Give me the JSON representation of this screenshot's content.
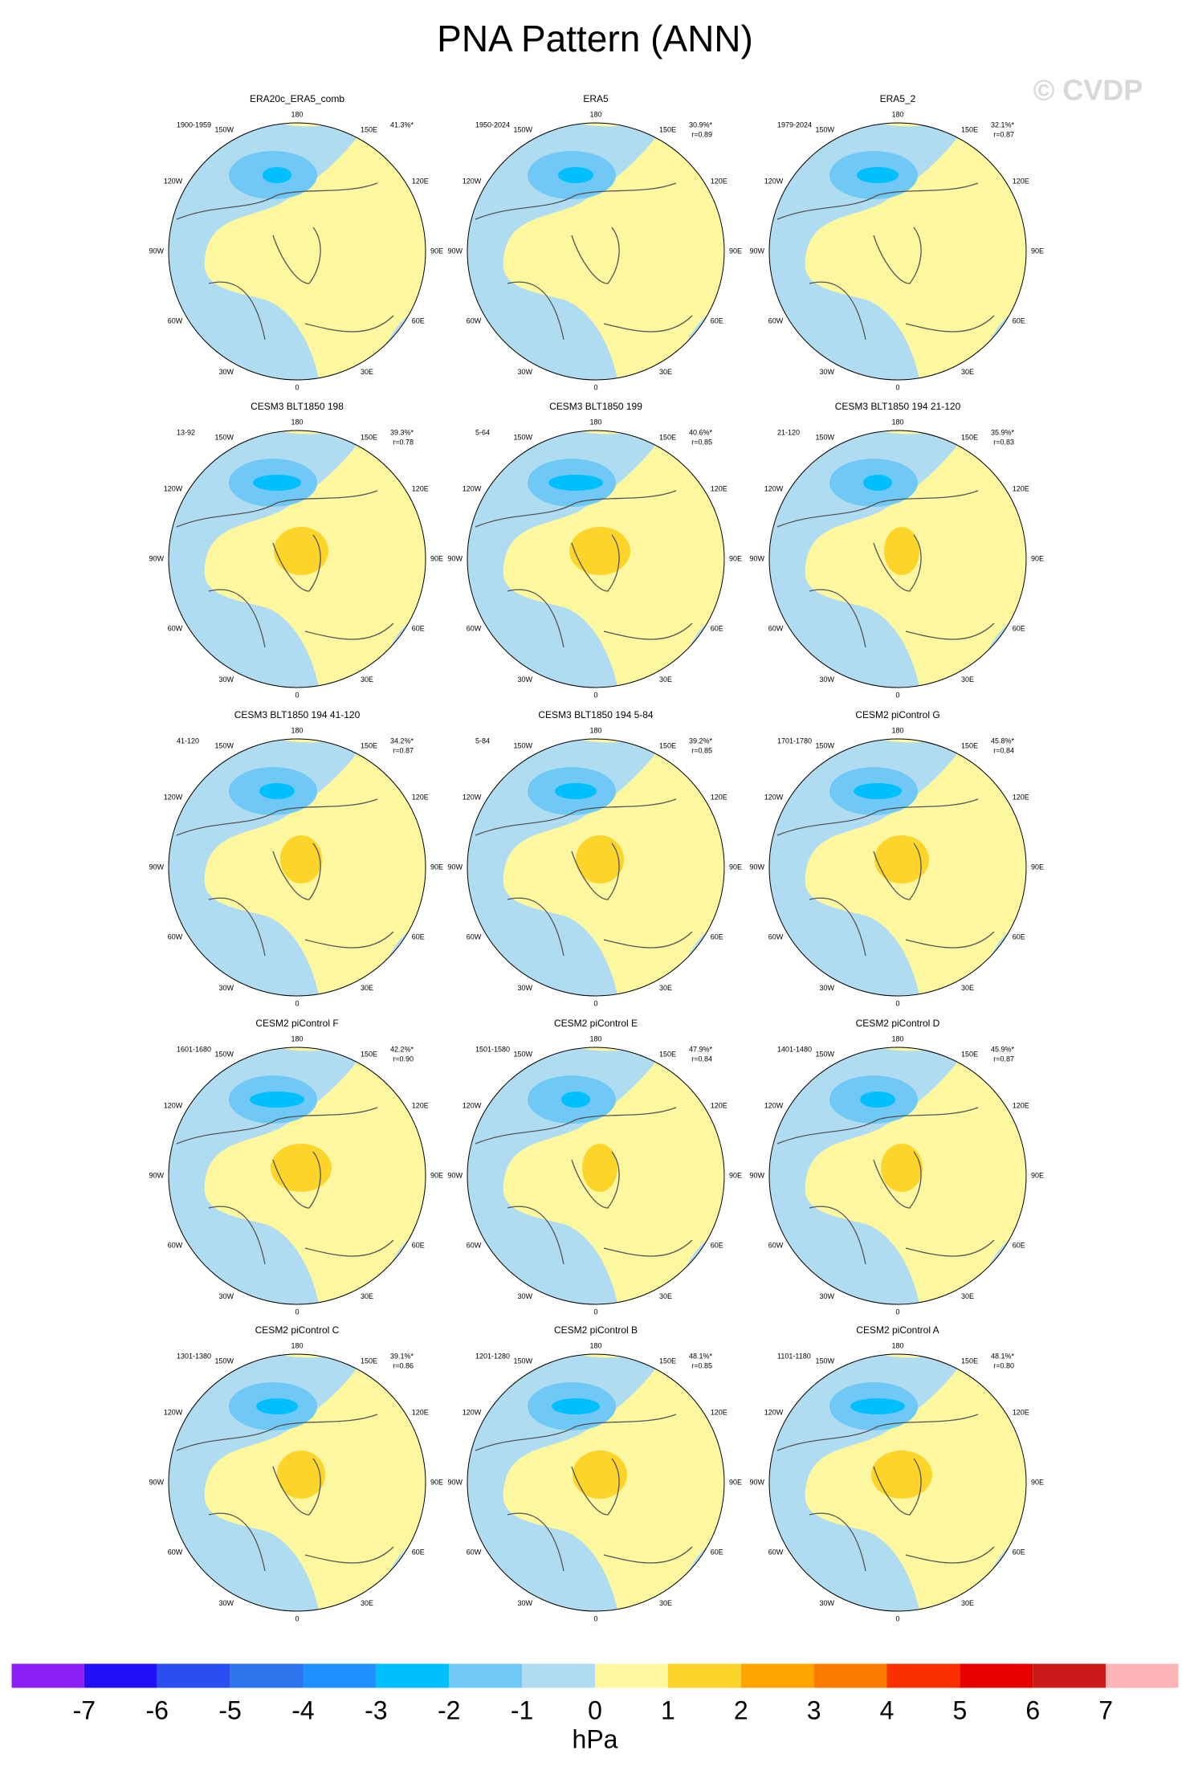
{
  "title": "PNA Pattern (ANN)",
  "watermark": "© CVDP",
  "lon_labels": [
    "180",
    "150E",
    "120E",
    "90E",
    "60E",
    "30E",
    "0",
    "30W",
    "60W",
    "90W",
    "120W",
    "150W"
  ],
  "panels": [
    {
      "title": "ERA20c_ERA5_comb",
      "period": "1900-1959",
      "pct": "41.3%*",
      "r": ""
    },
    {
      "title": "ERA5",
      "period": "1950-2024",
      "pct": "30.9%*",
      "r": "r=0.89"
    },
    {
      "title": "ERA5_2",
      "period": "1979-2024",
      "pct": "32.1%*",
      "r": "r=0.87"
    },
    {
      "title": "CESM3 BLT1850 198",
      "period": "13-92",
      "pct": "39.3%*",
      "r": "r=0.78"
    },
    {
      "title": "CESM3 BLT1850 199",
      "period": "5-64",
      "pct": "40.6%*",
      "r": "r=0.85"
    },
    {
      "title": "CESM3 BLT1850 194 21-120",
      "period": "21-120",
      "pct": "35.9%*",
      "r": "r=0.83"
    },
    {
      "title": "CESM3 BLT1850 194 41-120",
      "period": "41-120",
      "pct": "34.2%*",
      "r": "r=0.87"
    },
    {
      "title": "CESM3 BLT1850 194 5-84",
      "period": "5-84",
      "pct": "39.2%*",
      "r": "r=0.85"
    },
    {
      "title": "CESM2 piControl G",
      "period": "1701-1780",
      "pct": "45.8%*",
      "r": "r=0.84"
    },
    {
      "title": "CESM2 piControl F",
      "period": "1601-1680",
      "pct": "42.2%*",
      "r": "r=0.90"
    },
    {
      "title": "CESM2 piControl E",
      "period": "1501-1580",
      "pct": "47.9%*",
      "r": "r=0.84"
    },
    {
      "title": "CESM2 piControl D",
      "period": "1401-1480",
      "pct": "45.9%*",
      "r": "r=0.87"
    },
    {
      "title": "CESM2 piControl C",
      "period": "1301-1380",
      "pct": "39.1%*",
      "r": "r=0.86"
    },
    {
      "title": "CESM2 piControl B",
      "period": "1201-1280",
      "pct": "48.1%*",
      "r": "r=0.85"
    },
    {
      "title": "CESM2 piControl A",
      "period": "1101-1180",
      "pct": "48.1%*",
      "r": "r=0.80"
    }
  ],
  "colorbar": {
    "colors": [
      "#8c1ff5",
      "#2010f5",
      "#2a4ef0",
      "#2e74ec",
      "#1e90ff",
      "#00bfff",
      "#6fc8f5",
      "#b0dcf2",
      "#fdf8a0",
      "#fdd52a",
      "#fda400",
      "#fb7a00",
      "#fb3000",
      "#e60000",
      "#cc1a1a",
      "#fdb4b8"
    ],
    "labels": [
      "-7",
      "-6",
      "-5",
      "-4",
      "-3",
      "-2",
      "-1",
      "0",
      "1",
      "2",
      "3",
      "4",
      "5",
      "6",
      "7"
    ],
    "unit": "hPa"
  }
}
